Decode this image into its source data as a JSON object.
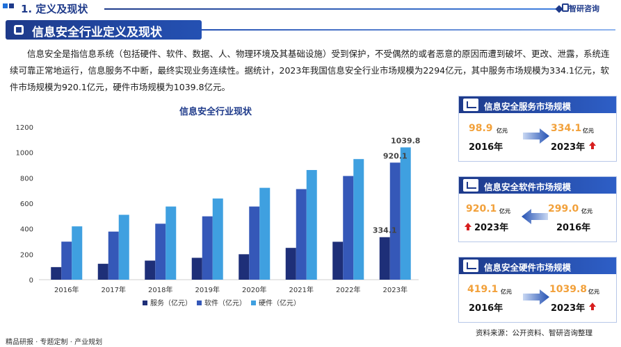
{
  "header": {
    "section": "1. 定义及现状",
    "brand": "智研咨询"
  },
  "banner": {
    "title": "信息安全行业定义及现状"
  },
  "intro": "信息安全是指信息系统（包括硬件、软件、数据、人、物理环境及其基础设施）受到保护，不受偶然的或者恶意的原因而遭到破坏、更改、泄露，系统连续可靠正常地运行，信息服务不中断，最终实现业务连续性。据统计，2023年我国信息安全行业市场规模为2294亿元，其中服务市场规模为334.1亿元，软件市场规模为920.1亿元，硬件市场规模为1039.8亿元。",
  "chart_data": {
    "type": "bar",
    "title": "信息安全行业现状",
    "categories": [
      "2016年",
      "2017年",
      "2018年",
      "2019年",
      "2020年",
      "2021年",
      "2022年",
      "2023年"
    ],
    "series": [
      {
        "name": "服务（亿元）",
        "color": "#1e2f78",
        "values": [
          98.9,
          125,
          150,
          172,
          200,
          250,
          298,
          334.1
        ]
      },
      {
        "name": "软件（亿元）",
        "color": "#3558b8",
        "values": [
          299.0,
          378,
          440,
          498,
          575,
          712,
          815,
          920.1
        ]
      },
      {
        "name": "硬件（亿元）",
        "color": "#3fa0e0",
        "values": [
          419.1,
          510,
          575,
          638,
          722,
          862,
          948,
          1039.8
        ]
      }
    ],
    "data_labels": {
      "服务": "334.1",
      "软件": "920.1",
      "硬件": "1039.8"
    },
    "yticks": [
      "0",
      "200",
      "400",
      "600",
      "800",
      "1000",
      "1200"
    ],
    "ylim": [
      0,
      1200
    ],
    "legend_position": "bottom"
  },
  "cards": [
    {
      "title": "信息安全服务市场规模",
      "from_value": "98.9",
      "from_unit": "亿元",
      "from_year": "2016年",
      "to_value": "334.1",
      "to_unit": "亿元",
      "to_year": "2023年"
    },
    {
      "title": "信息安全软件市场规模",
      "from_value": "920.1",
      "from_unit": "亿元",
      "from_year": "2023年",
      "to_value": "299.0",
      "to_unit": "亿元",
      "to_year": "2016年"
    },
    {
      "title": "信息安全硬件市场规模",
      "from_value": "419.1",
      "from_unit": "亿元",
      "from_year": "2016年",
      "to_value": "1039.8",
      "to_unit": "亿元",
      "to_year": "2023年"
    }
  ],
  "footer": {
    "left": "精品研报 · 专题定制 · 产业规划",
    "source": "资料来源：公开资料、智研咨询整理"
  },
  "colors": {
    "primary": "#1e3a8a",
    "accent": "#f2a13b",
    "up": "#d71e1e"
  }
}
